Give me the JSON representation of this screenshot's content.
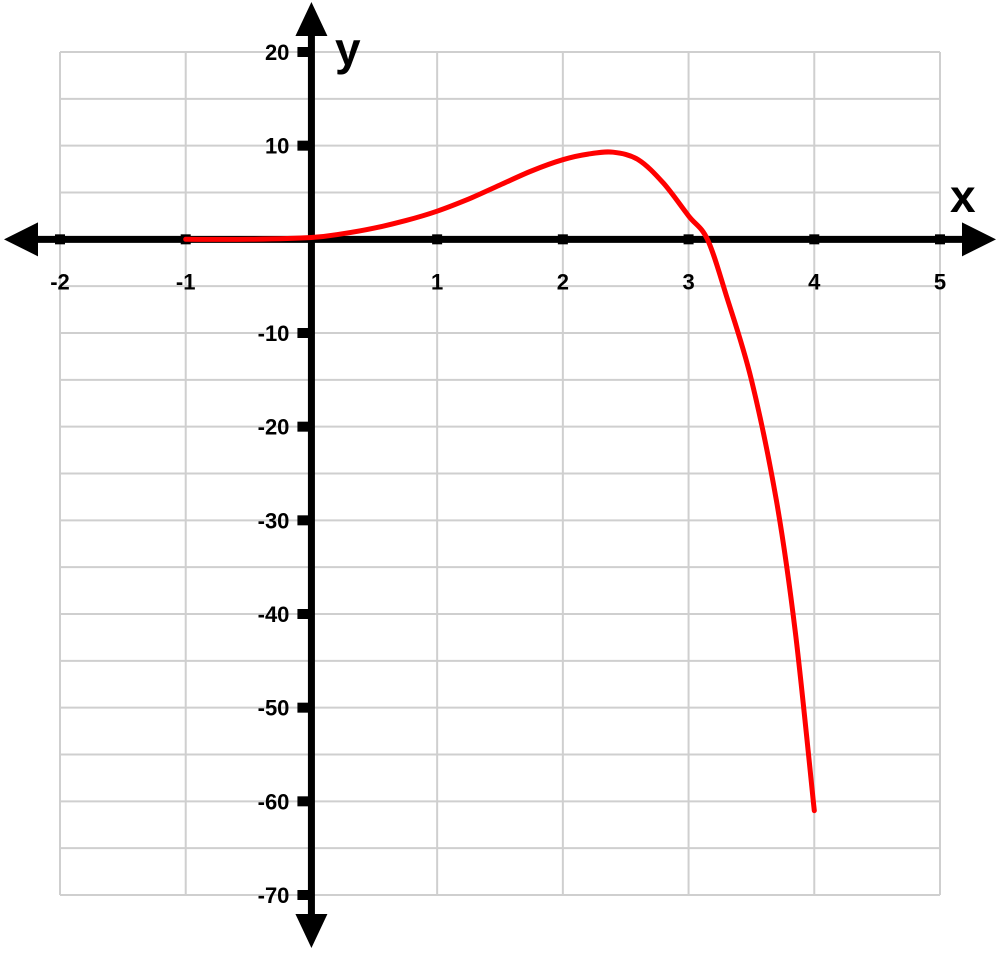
{
  "chart_data": {
    "type": "line",
    "xlabel": "x",
    "ylabel": "y",
    "xlim": [
      -2,
      5
    ],
    "ylim": [
      -70,
      20
    ],
    "x_ticks": [
      -2,
      -1,
      1,
      2,
      3,
      4,
      5
    ],
    "y_ticks": [
      20,
      10,
      -10,
      -20,
      -30,
      -40,
      -50,
      -60,
      -70
    ],
    "x_tick_labels": [
      "-2",
      "-1",
      "1",
      "2",
      "3",
      "4",
      "5"
    ],
    "y_tick_labels": [
      "20",
      "10",
      "-10",
      "-20",
      "-30",
      "-40",
      "-50",
      "-60",
      "-70"
    ],
    "grid": true,
    "grid_minor_y_step": 5,
    "colors": {
      "grid": "#cfcfcf",
      "axes": "#000000",
      "curve": "#ff0000"
    },
    "series": [
      {
        "x": [
          -1,
          -0.5,
          0,
          0.25,
          0.5,
          0.75,
          1,
          1.25,
          1.5,
          1.75,
          2,
          2.2,
          2.4,
          2.6,
          2.8,
          3,
          3.15,
          3.3,
          3.5,
          3.7,
          3.85,
          4
        ],
        "values": [
          0,
          0,
          0.2,
          0.6,
          1.2,
          2.0,
          3.0,
          4.3,
          5.8,
          7.3,
          8.5,
          9.1,
          9.3,
          8.5,
          6.0,
          2.5,
          0,
          -6,
          -15,
          -28,
          -42,
          -61
        ]
      }
    ]
  }
}
